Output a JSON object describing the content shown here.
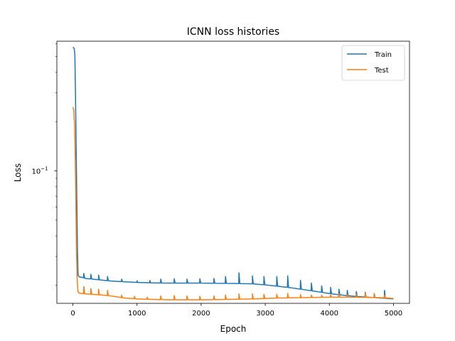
{
  "chart_data": {
    "type": "line",
    "title": "ICNN loss histories",
    "xlabel": "Epoch",
    "ylabel": "Loss",
    "yscale": "log",
    "xlim": [
      -250,
      5250
    ],
    "ylim": [
      0.0155,
      0.62
    ],
    "x_ticks": [
      0,
      1000,
      2000,
      3000,
      4000,
      5000
    ],
    "x_tick_labels": [
      "0",
      "1000",
      "2000",
      "3000",
      "4000",
      "5000"
    ],
    "y_ticks": [
      0.1
    ],
    "y_tick_labels_mantissa": "10",
    "y_tick_labels_exponent": "−1",
    "grid": false,
    "legend_position": "top-right",
    "series": [
      {
        "name": "Train",
        "color": "#1f77b4",
        "x": [
          0,
          20,
          30,
          40,
          50,
          60,
          70,
          80,
          100,
          150,
          200,
          300,
          400,
          500,
          600,
          800,
          1000,
          1200,
          1500,
          2000,
          2500,
          2800,
          3000,
          3200,
          3400,
          3600,
          3800,
          4000,
          4200,
          4400,
          4600,
          4800,
          5000
        ],
        "y": [
          0.57,
          0.56,
          0.52,
          0.3,
          0.15,
          0.07,
          0.035,
          0.023,
          0.0225,
          0.0223,
          0.022,
          0.0218,
          0.0216,
          0.0214,
          0.0212,
          0.021,
          0.0208,
          0.0207,
          0.0206,
          0.0206,
          0.0205,
          0.0204,
          0.0201,
          0.0197,
          0.0193,
          0.0188,
          0.0183,
          0.0178,
          0.0174,
          0.0171,
          0.0169,
          0.0167,
          0.0165
        ],
        "spikes": [
          {
            "x": 170,
            "y": 0.0236
          },
          {
            "x": 280,
            "y": 0.0233
          },
          {
            "x": 400,
            "y": 0.0231
          },
          {
            "x": 540,
            "y": 0.0226
          },
          {
            "x": 760,
            "y": 0.0218
          },
          {
            "x": 1000,
            "y": 0.0213
          },
          {
            "x": 1200,
            "y": 0.0214
          },
          {
            "x": 1370,
            "y": 0.0218
          },
          {
            "x": 1580,
            "y": 0.0219
          },
          {
            "x": 1780,
            "y": 0.0218
          },
          {
            "x": 1980,
            "y": 0.0219
          },
          {
            "x": 2200,
            "y": 0.022
          },
          {
            "x": 2380,
            "y": 0.0226
          },
          {
            "x": 2590,
            "y": 0.0238
          },
          {
            "x": 2800,
            "y": 0.0228
          },
          {
            "x": 2980,
            "y": 0.0226
          },
          {
            "x": 3180,
            "y": 0.0226
          },
          {
            "x": 3350,
            "y": 0.0228
          },
          {
            "x": 3550,
            "y": 0.0214
          },
          {
            "x": 3720,
            "y": 0.0206
          },
          {
            "x": 3880,
            "y": 0.0198
          },
          {
            "x": 4020,
            "y": 0.0194
          },
          {
            "x": 4150,
            "y": 0.0189
          },
          {
            "x": 4280,
            "y": 0.0186
          },
          {
            "x": 4420,
            "y": 0.0183
          },
          {
            "x": 4560,
            "y": 0.0181
          },
          {
            "x": 4700,
            "y": 0.0178
          },
          {
            "x": 4860,
            "y": 0.0186
          }
        ]
      },
      {
        "name": "Test",
        "color": "#ff7f0e",
        "x": [
          0,
          15,
          25,
          35,
          45,
          55,
          65,
          80,
          100,
          150,
          200,
          400,
          600,
          800,
          1000,
          1200,
          1500,
          2000,
          2500,
          2800,
          3000,
          3200,
          3600,
          4000,
          4400,
          4800,
          5000
        ],
        "y": [
          0.245,
          0.235,
          0.2,
          0.13,
          0.07,
          0.035,
          0.022,
          0.0182,
          0.0179,
          0.0178,
          0.0177,
          0.0175,
          0.0172,
          0.0167,
          0.0165,
          0.0164,
          0.0163,
          0.0163,
          0.0164,
          0.0165,
          0.0166,
          0.0167,
          0.0168,
          0.0169,
          0.0169,
          0.0168,
          0.0166
        ],
        "spikes": [
          {
            "x": 20,
            "y": 0.205
          },
          {
            "x": 170,
            "y": 0.0196
          },
          {
            "x": 280,
            "y": 0.0191
          },
          {
            "x": 400,
            "y": 0.0189
          },
          {
            "x": 540,
            "y": 0.0186
          },
          {
            "x": 760,
            "y": 0.0174
          },
          {
            "x": 960,
            "y": 0.0171
          },
          {
            "x": 1160,
            "y": 0.0169
          },
          {
            "x": 1370,
            "y": 0.0172
          },
          {
            "x": 1580,
            "y": 0.0173
          },
          {
            "x": 1780,
            "y": 0.0172
          },
          {
            "x": 1980,
            "y": 0.0171
          },
          {
            "x": 2200,
            "y": 0.0172
          },
          {
            "x": 2380,
            "y": 0.0174
          },
          {
            "x": 2590,
            "y": 0.0177
          },
          {
            "x": 2800,
            "y": 0.0177
          },
          {
            "x": 2980,
            "y": 0.0176
          },
          {
            "x": 3180,
            "y": 0.0176
          },
          {
            "x": 3350,
            "y": 0.0178
          },
          {
            "x": 3550,
            "y": 0.0175
          },
          {
            "x": 3720,
            "y": 0.0174
          },
          {
            "x": 3880,
            "y": 0.0174
          },
          {
            "x": 4020,
            "y": 0.0175
          },
          {
            "x": 4150,
            "y": 0.0177
          },
          {
            "x": 4280,
            "y": 0.0175
          },
          {
            "x": 4420,
            "y": 0.0176
          },
          {
            "x": 4560,
            "y": 0.0179
          },
          {
            "x": 4700,
            "y": 0.0177
          },
          {
            "x": 4860,
            "y": 0.0174
          }
        ]
      }
    ]
  }
}
